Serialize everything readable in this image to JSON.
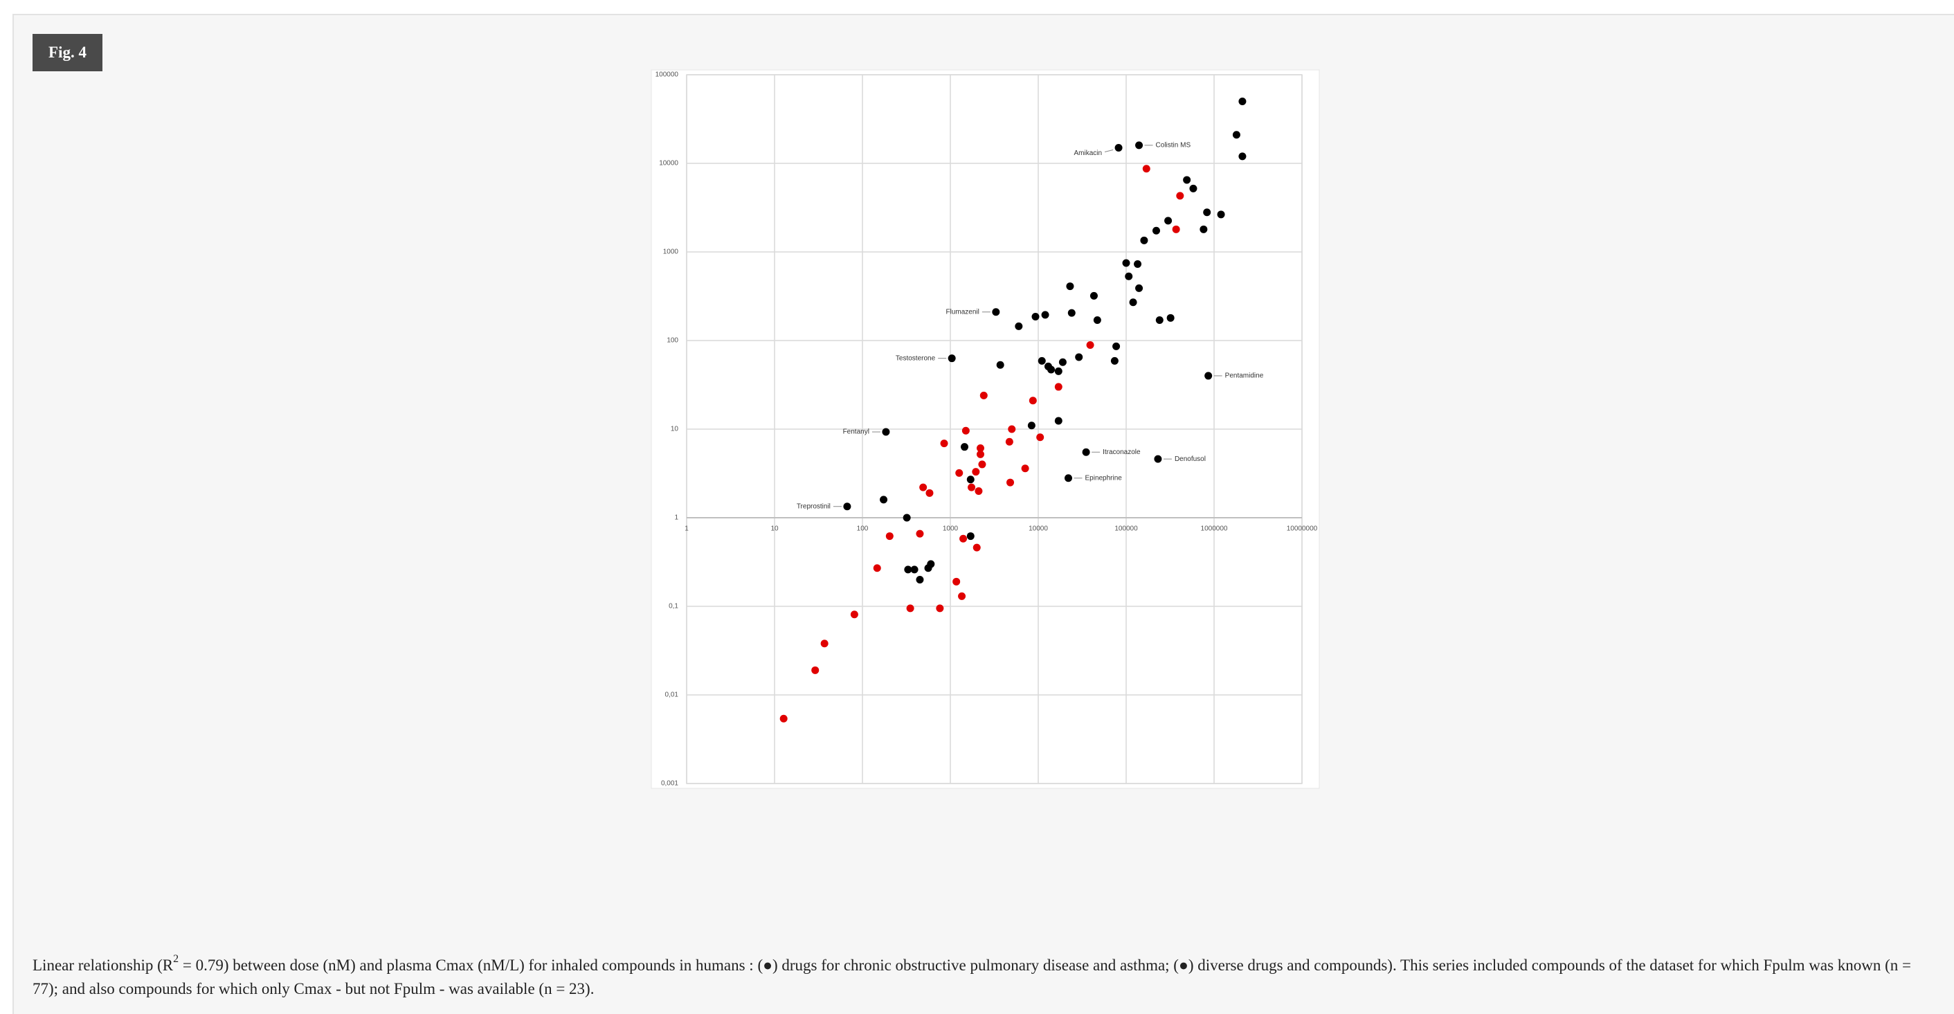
{
  "figure_label": "Fig. 4",
  "caption": {
    "before": "Linear relationship (R",
    "sup": "2",
    "after": " = 0.79) between dose (nM) and plasma Cmax (nM/L) for inhaled compounds in humans : (●) drugs for chronic obstructive pulmonary disease and asthma; (●) diverse drugs and compounds). This series included compounds of the dataset for which Fpulm was known (n = 77); and also compounds for which only Cmax - but not Fpulm - was available (n = 23)."
  },
  "chart_data": {
    "type": "scatter",
    "log_x": true,
    "log_y": true,
    "grid": true,
    "xlim": [
      1,
      10000000
    ],
    "xticks": [
      1,
      10,
      100,
      1000,
      10000,
      100000,
      1000000,
      10000000
    ],
    "ylim": [
      0.001,
      100000
    ],
    "yticks": [
      {
        "value": 0.001,
        "label": "0,001"
      },
      {
        "value": 0.01,
        "label": "0,01"
      },
      {
        "value": 0.1,
        "label": "0,1"
      },
      1,
      10,
      100,
      1000,
      10000,
      100000
    ],
    "series": [
      {
        "color": "#000000",
        "x": [
          2100000,
          1800000,
          2100000,
          490000,
          580000,
          300000,
          220000,
          160000,
          830000,
          1200000,
          760000,
          100000,
          135000,
          107000,
          140000,
          43000,
          23000,
          120000,
          9300,
          12000,
          24000,
          47000,
          240000,
          320000,
          6000,
          77000,
          74000,
          29000,
          3700,
          11000,
          13000,
          14000,
          17000,
          19000,
          17000,
          8400,
          1450,
          1700,
          174,
          320,
          1700,
          330,
          390,
          450,
          560,
          600
        ],
        "values": [
          50000,
          21000,
          12000,
          6500,
          5200,
          2250,
          1740,
          1350,
          2800,
          2650,
          1800,
          750,
          730,
          530,
          390,
          320,
          410,
          270,
          186,
          195,
          205,
          170,
          170,
          180,
          145,
          86,
          59,
          65,
          53,
          59,
          51,
          47,
          45,
          57,
          12.4,
          11,
          6.3,
          2.7,
          1.6,
          1.0,
          0.62,
          0.26,
          0.26,
          0.2,
          0.27,
          0.3
        ]
      },
      {
        "color": "#e00000",
        "x": [
          170000,
          410000,
          370000,
          39000,
          17000,
          2400,
          8700,
          1500,
          5000,
          10500,
          4700,
          850,
          2200,
          2200,
          2300,
          7100,
          1260,
          1950,
          4800,
          490,
          580,
          1740,
          2100,
          204,
          450,
          1400,
          2000,
          147,
          1170,
          1350,
          350,
          760,
          81,
          37,
          29,
          12.7
        ],
        "values": [
          8700,
          4300,
          1800,
          89,
          30,
          24,
          21,
          9.6,
          10,
          8.1,
          7.2,
          6.9,
          6.1,
          5.2,
          4.0,
          3.6,
          3.2,
          3.3,
          2.5,
          2.2,
          1.9,
          2.2,
          2.0,
          0.62,
          0.66,
          0.58,
          0.46,
          0.27,
          0.19,
          0.13,
          0.095,
          0.095,
          0.081,
          0.038,
          0.019,
          0.0054
        ]
      }
    ],
    "annotations": [
      {
        "text": "Amikacin",
        "x": 82000,
        "y": 15000
      },
      {
        "text": "Colistin MS",
        "x": 140000,
        "y": 16000
      },
      {
        "text": "Flumazenil",
        "x": 3300,
        "y": 210
      },
      {
        "text": "Testosterone",
        "x": 1040,
        "y": 63
      },
      {
        "text": "Fentanyl",
        "x": 185,
        "y": 9.3
      },
      {
        "text": "Treprostinil",
        "x": 67,
        "y": 1.34
      },
      {
        "text": "Pentamidine",
        "x": 860000,
        "y": 40
      },
      {
        "text": "Itraconazole",
        "x": 35000,
        "y": 5.5
      },
      {
        "text": "Denofusol",
        "x": 230000,
        "y": 4.6
      },
      {
        "text": "Epinephrine",
        "x": 22000,
        "y": 2.8
      }
    ]
  }
}
